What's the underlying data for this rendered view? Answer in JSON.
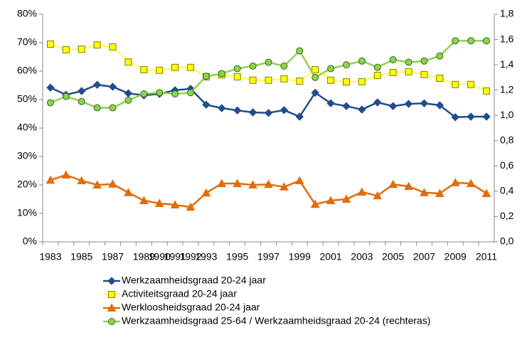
{
  "chart_data": {
    "type": "line",
    "categories": [
      "1983",
      null,
      "1985",
      null,
      "1987",
      null,
      "1989",
      "1990",
      "1991",
      "1992",
      "1993",
      null,
      "1995",
      null,
      "1997",
      null,
      "1999",
      null,
      "2001",
      null,
      "2003",
      null,
      "2005",
      null,
      "2007",
      null,
      "2009",
      null,
      "2011"
    ],
    "ylim": [
      0,
      80
    ],
    "yticks": [
      {
        "value": 0,
        "label": "0%"
      },
      {
        "value": 10,
        "label": "10%"
      },
      {
        "value": 20,
        "label": "20%"
      },
      {
        "value": 30,
        "label": "30%"
      },
      {
        "value": 40,
        "label": "40%"
      },
      {
        "value": 50,
        "label": "50%"
      },
      {
        "value": 60,
        "label": "60%"
      },
      {
        "value": 70,
        "label": "70%"
      },
      {
        "value": 80,
        "label": "80%"
      }
    ],
    "y2lim": [
      0,
      1.8
    ],
    "y2ticks": [
      {
        "value": 0,
        "label": "0,0"
      },
      {
        "value": 0.2,
        "label": "0,2"
      },
      {
        "value": 0.4,
        "label": "0,4"
      },
      {
        "value": 0.6,
        "label": "0,6"
      },
      {
        "value": 0.8,
        "label": "0,8"
      },
      {
        "value": 1.0,
        "label": "1,0"
      },
      {
        "value": 1.2,
        "label": "1,2"
      },
      {
        "value": 1.4,
        "label": "1,4"
      },
      {
        "value": 1.6,
        "label": "1,6"
      },
      {
        "value": 1.8,
        "label": "1,8"
      }
    ],
    "grid": false,
    "legend": "bottom",
    "series": [
      {
        "name": "Werkzaamheidsgraad 20-24 jaar",
        "color": "#1f4e8c",
        "marker": "diamond",
        "values": [
          54.2,
          51.7,
          53,
          55.2,
          54.5,
          52.2,
          51.5,
          52,
          53.3,
          53.8,
          48.2,
          47,
          46.2,
          45.5,
          45.3,
          46.3,
          44,
          52.4,
          48.7,
          47.7,
          46.5,
          49,
          47.7,
          48.5,
          48.7,
          48,
          43.8,
          44,
          44
        ]
      },
      {
        "name": "Activiteitsgraad 20-24 jaar",
        "color": "#ffff00",
        "marker": "square",
        "values": [
          69.5,
          67.5,
          67.7,
          69.2,
          68.5,
          63.2,
          60.5,
          60.3,
          61.3,
          61.3,
          58,
          58.7,
          58,
          56.8,
          56.8,
          57.3,
          56.5,
          60.5,
          56.8,
          56.2,
          56.3,
          58.5,
          59.5,
          59.8,
          58.8,
          57.5,
          55.3,
          55.3,
          53
        ]
      },
      {
        "name": "Werkloosheidsgraad 20-24 jaar",
        "color": "#e36c0a",
        "marker": "triangle",
        "values": [
          21.7,
          23.5,
          21.5,
          20,
          20.3,
          17.3,
          14.5,
          13.5,
          13,
          12.2,
          17.2,
          20.5,
          20.5,
          20,
          20.2,
          19.3,
          21.5,
          13.2,
          14.5,
          15,
          17.5,
          16.2,
          20.2,
          19.5,
          17.3,
          17,
          20.8,
          20.5,
          17
        ]
      },
      {
        "name": "Werkzaamheidsgraad 25-64 / Werkzaamheidsgraad 20-24 (rechteras)",
        "color": "#92d050",
        "marker": "circle",
        "axis": "y2",
        "values": [
          1.1,
          1.15,
          1.11,
          1.06,
          1.06,
          1.12,
          1.17,
          1.18,
          1.17,
          1.18,
          1.31,
          1.33,
          1.37,
          1.39,
          1.42,
          1.39,
          1.51,
          1.3,
          1.37,
          1.4,
          1.43,
          1.38,
          1.44,
          1.42,
          1.43,
          1.47,
          1.59,
          1.59,
          1.59
        ]
      }
    ]
  }
}
